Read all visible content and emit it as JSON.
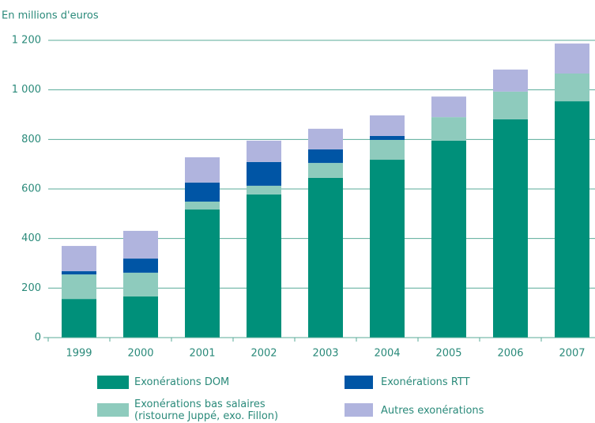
{
  "chart_data": {
    "type": "stacked_bar",
    "y_axis_label": "En millions d'euros",
    "categories": [
      "1999",
      "2000",
      "2001",
      "2002",
      "2003",
      "2004",
      "2005",
      "2006",
      "2007"
    ],
    "series": [
      {
        "name": "Exonérations DOM",
        "color": "#00907a",
        "values": [
          156,
          166,
          517,
          578,
          645,
          718,
          795,
          881,
          954
        ]
      },
      {
        "name": "Exonérations bas salaires (ristourne Juppé, exo. Fillon)",
        "color": "#8ecbbd",
        "values": [
          99,
          96,
          32,
          35,
          60,
          80,
          95,
          112,
          112
        ]
      },
      {
        "name": "Exonérations RTT",
        "color": "#0055a5",
        "values": [
          13,
          57,
          77,
          96,
          55,
          16,
          0,
          0,
          0
        ]
      },
      {
        "name": "Autres exonérations",
        "color": "#b0b4de",
        "values": [
          102,
          112,
          102,
          86,
          83,
          83,
          83,
          89,
          121
        ]
      }
    ],
    "ylim": [
      0,
      1200
    ],
    "yticks": [
      0,
      200,
      400,
      600,
      800,
      {
        "value": 1000,
        "label": "1 000"
      },
      {
        "value": 1200,
        "label": "1 200"
      }
    ],
    "grid": true
  }
}
